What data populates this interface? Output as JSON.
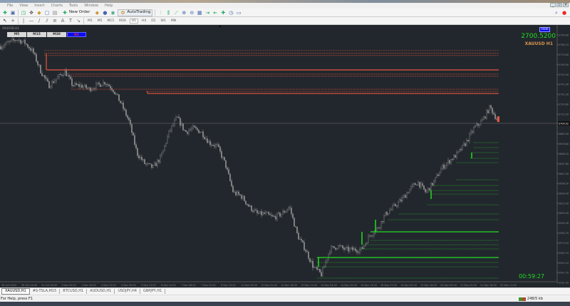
{
  "menu": [
    "File",
    "View",
    "Insert",
    "Charts",
    "Tools",
    "Window",
    "Help"
  ],
  "toolbar": {
    "new_order": "New Order",
    "autotrading": "AutoTrading"
  },
  "timeframes": [
    "M1",
    "M5",
    "M15",
    "M30",
    "H1",
    "H4",
    "D1",
    "W1",
    "MN"
  ],
  "chart": {
    "header": "XAUUSD,H1",
    "tf_buttons": [
      "M5",
      "M15",
      "M30",
      "H1"
    ],
    "active_tf": "H1",
    "hide_label": "Hide",
    "bid": "2700.5200",
    "symbol_tf": "XAUUSD  H1",
    "timer": "00:59:27",
    "colors": {
      "bg": "#22272d",
      "candle": "#8c8c8c",
      "supply": "#e8553a",
      "demand": "#22dd22",
      "bid": "#22dd22",
      "symbol": "#d9954f"
    }
  },
  "price_axis": [
    "2794.60",
    "2784.10",
    "2773.60",
    "2763.00",
    "2752.50",
    "2741.90",
    "2731.30",
    "2720.80",
    "2710.30",
    "2700.52",
    "2689.30",
    "2678.80",
    "2668.20",
    "2657.60",
    "2647.00",
    "2636.50",
    "2626.00",
    "2615.50",
    "2605.00",
    "2594.30",
    "2583.70",
    "2573.20",
    "2562.70",
    "2552.10",
    "2541.70",
    "2531.20"
  ],
  "time_axis": [
    "30 Oct 2024",
    "30 Oct 16:00",
    "31 Oct 09:00",
    "1 Nov 02:00",
    "1 Nov 19:00",
    "4 Nov 12:00",
    "5 Nov 05:00",
    "5 Nov 21:00",
    "6 Nov 14:00",
    "7 Nov 06:00",
    "7 Nov 22:00",
    "8 Nov 15:00",
    "11 Nov 09:00",
    "12 Nov 02:00",
    "12 Nov 18:00",
    "13 Nov 11:00",
    "14 Nov 04:00",
    "14 Nov 20:00",
    "15 Nov 13:00",
    "18 Nov 07:00",
    "19 Nov 00:00",
    "19 Nov 16:00",
    "20 Nov 09:00",
    "21 Nov 02:00",
    "21 Nov 18:00",
    "22 Nov 11:00"
  ],
  "price_path": [
    2782.5,
    2786.3,
    2790.0,
    2786.3,
    2777.1,
    2755.9,
    2740.7,
    2748.3,
    2755.9,
    2740.7,
    2740.7,
    2736.9,
    2740.7,
    2744.5,
    2736.9,
    2721.7,
    2702.8,
    2668.6,
    2657.2,
    2653.4,
    2664.8,
    2691.4,
    2706.6,
    2691.4,
    2695.2,
    2691.4,
    2680.0,
    2676.2,
    2657.2,
    2626.9,
    2623.1,
    2611.7,
    2604.1,
    2604.1,
    2600.3,
    2604.1,
    2611.7,
    2581.3,
    2566.1,
    2547.2,
    2539.6,
    2566.1,
    2569.9,
    2566.1,
    2566.1,
    2566.1,
    2581.3,
    2588.9,
    2604.1,
    2611.7,
    2619.3,
    2630.7,
    2638.2,
    2626.9,
    2638.2,
    2653.4,
    2661.0,
    2668.6,
    2680.0,
    2695.2,
    2702.8,
    2717.9,
    2702.8
  ],
  "supply_levels": [
    {
      "price": 2778.0,
      "style": "dotted"
    },
    {
      "price": 2775.0,
      "style": "dotted"
    },
    {
      "price": 2772.7,
      "style": "dotted"
    },
    {
      "price": 2757.4,
      "style": "solid"
    },
    {
      "price": 2752.9,
      "style": "dotted"
    },
    {
      "price": 2750.6,
      "style": "dotted"
    },
    {
      "price": 2736.9,
      "style": "dotted"
    },
    {
      "price": 2734.6,
      "style": "dotted"
    },
    {
      "price": 2732.3,
      "style": "solid"
    }
  ],
  "demand_levels": [
    {
      "price": 2680.0,
      "style": "dotted"
    },
    {
      "price": 2674.7,
      "style": "dotted"
    },
    {
      "price": 2669.4,
      "style": "dotted"
    },
    {
      "price": 2663.3,
      "style": "dotted"
    },
    {
      "price": 2658.7,
      "style": "dotted"
    },
    {
      "price": 2640.5,
      "style": "dotted"
    },
    {
      "price": 2634.4,
      "style": "dotted"
    },
    {
      "price": 2629.1,
      "style": "dotted"
    },
    {
      "price": 2625.3,
      "style": "dotted"
    },
    {
      "price": 2613.9,
      "style": "dotted"
    },
    {
      "price": 2604.1,
      "style": "dotted"
    },
    {
      "price": 2598.0,
      "style": "dotted"
    },
    {
      "price": 2585.1,
      "style": "solid"
    },
    {
      "price": 2576.0,
      "style": "dotted"
    },
    {
      "price": 2571.4,
      "style": "dotted"
    },
    {
      "price": 2566.9,
      "style": "dotted"
    },
    {
      "price": 2557.8,
      "style": "solid"
    },
    {
      "price": 2552.5,
      "style": "dotted"
    },
    {
      "price": 2547.9,
      "style": "dotted"
    },
    {
      "price": 2535.8,
      "style": "dotted"
    }
  ],
  "tabs": [
    "XAUUSD,H1",
    "#S-TSLA,M15",
    "BTCUSD,H1",
    "AUDUSD,H1",
    "USDJPY,H4",
    "GBPJPY,H1"
  ],
  "status": {
    "help": "For Help, press F1",
    "traffic": "248/5 kb"
  }
}
